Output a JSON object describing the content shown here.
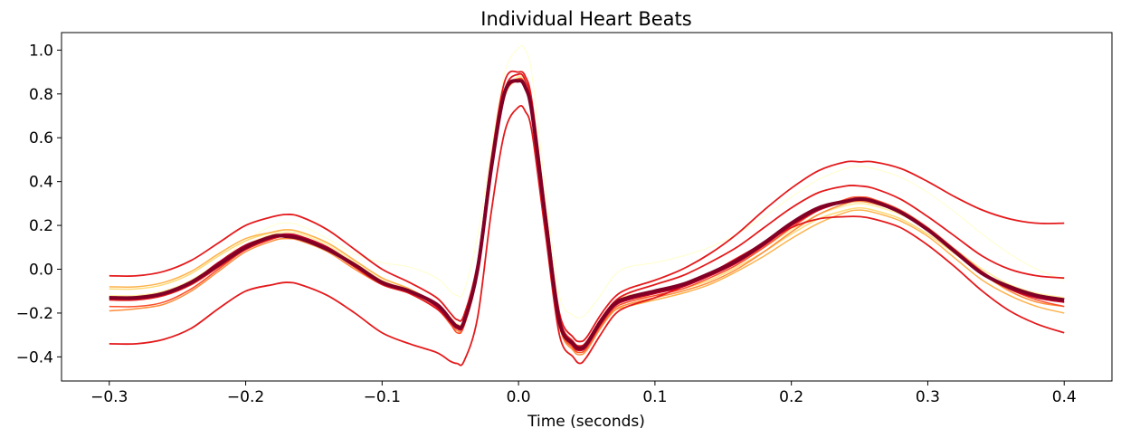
{
  "chart_data": {
    "type": "line",
    "title": "Individual Heart Beats",
    "xlabel": "Time (seconds)",
    "ylabel": "",
    "xlim": [
      -0.335,
      0.435
    ],
    "ylim": [
      -0.51,
      1.08
    ],
    "xticks": [
      -0.3,
      -0.2,
      -0.1,
      0.0,
      0.1,
      0.2,
      0.3,
      0.4
    ],
    "xtick_labels": [
      "−0.3",
      "−0.2",
      "−0.1",
      "0.0",
      "0.1",
      "0.2",
      "0.3",
      "0.4"
    ],
    "yticks": [
      -0.4,
      -0.2,
      0.0,
      0.2,
      0.4,
      0.6,
      0.8,
      1.0
    ],
    "ytick_labels": [
      "−0.4",
      "−0.2",
      "0.0",
      "0.2",
      "0.4",
      "0.6",
      "0.8",
      "1.0"
    ],
    "grid": false,
    "legend": false,
    "x": [
      -0.3,
      -0.28,
      -0.26,
      -0.24,
      -0.22,
      -0.2,
      -0.18,
      -0.17,
      -0.16,
      -0.14,
      -0.12,
      -0.1,
      -0.08,
      -0.06,
      -0.05,
      -0.045,
      -0.04,
      -0.03,
      -0.02,
      -0.01,
      0.0,
      0.005,
      0.01,
      0.02,
      0.03,
      0.04,
      0.045,
      0.05,
      0.06,
      0.07,
      0.08,
      0.1,
      0.12,
      0.14,
      0.16,
      0.18,
      0.2,
      0.22,
      0.24,
      0.25,
      0.26,
      0.28,
      0.3,
      0.32,
      0.34,
      0.36,
      0.38,
      0.4
    ],
    "series": [
      {
        "color": "#ffffcc",
        "width": 1.0,
        "values": [
          -0.13,
          -0.13,
          -0.11,
          -0.06,
          0.03,
          0.13,
          0.2,
          0.21,
          0.2,
          0.14,
          0.07,
          0.03,
          0.01,
          -0.04,
          -0.1,
          -0.12,
          -0.1,
          0.15,
          0.55,
          0.9,
          1.01,
          1.0,
          0.88,
          0.35,
          -0.12,
          -0.21,
          -0.22,
          -0.2,
          -0.12,
          -0.03,
          0.01,
          0.03,
          0.06,
          0.1,
          0.16,
          0.24,
          0.33,
          0.41,
          0.46,
          0.47,
          0.46,
          0.42,
          0.35,
          0.26,
          0.16,
          0.07,
          0.0,
          -0.05
        ]
      },
      {
        "color": "#ffeda0",
        "width": 1.5,
        "values": [
          -0.12,
          -0.12,
          -0.1,
          -0.05,
          0.03,
          0.11,
          0.16,
          0.17,
          0.16,
          0.11,
          0.03,
          -0.05,
          -0.1,
          -0.16,
          -0.22,
          -0.25,
          -0.23,
          0.0,
          0.45,
          0.79,
          0.88,
          0.84,
          0.72,
          0.23,
          -0.22,
          -0.33,
          -0.35,
          -0.33,
          -0.23,
          -0.15,
          -0.12,
          -0.1,
          -0.07,
          -0.03,
          0.03,
          0.1,
          0.18,
          0.25,
          0.29,
          0.3,
          0.29,
          0.25,
          0.18,
          0.09,
          0.0,
          -0.07,
          -0.11,
          -0.13
        ]
      },
      {
        "color": "#fed976",
        "width": 1.5,
        "values": [
          -0.09,
          -0.09,
          -0.07,
          -0.02,
          0.06,
          0.13,
          0.17,
          0.18,
          0.17,
          0.12,
          0.04,
          -0.04,
          -0.09,
          -0.16,
          -0.23,
          -0.26,
          -0.24,
          0.0,
          0.46,
          0.8,
          0.87,
          0.84,
          0.72,
          0.22,
          -0.24,
          -0.35,
          -0.37,
          -0.35,
          -0.25,
          -0.17,
          -0.14,
          -0.12,
          -0.09,
          -0.05,
          0.01,
          0.08,
          0.16,
          0.23,
          0.27,
          0.28,
          0.27,
          0.23,
          0.16,
          0.07,
          -0.02,
          -0.09,
          -0.13,
          -0.15
        ]
      },
      {
        "color": "#feb24c",
        "width": 1.5,
        "values": [
          -0.08,
          -0.08,
          -0.06,
          -0.01,
          0.07,
          0.14,
          0.17,
          0.18,
          0.17,
          0.12,
          0.04,
          -0.04,
          -0.09,
          -0.16,
          -0.23,
          -0.27,
          -0.24,
          0.0,
          0.45,
          0.8,
          0.86,
          0.83,
          0.7,
          0.2,
          -0.25,
          -0.36,
          -0.38,
          -0.36,
          -0.26,
          -0.19,
          -0.17,
          -0.14,
          -0.11,
          -0.07,
          -0.01,
          0.06,
          0.14,
          0.21,
          0.26,
          0.27,
          0.26,
          0.22,
          0.15,
          0.05,
          -0.05,
          -0.12,
          -0.17,
          -0.2
        ]
      },
      {
        "color": "#fd8d3c",
        "width": 1.5,
        "values": [
          -0.19,
          -0.18,
          -0.16,
          -0.1,
          -0.01,
          0.08,
          0.13,
          0.14,
          0.13,
          0.08,
          0.0,
          -0.07,
          -0.11,
          -0.18,
          -0.25,
          -0.28,
          -0.26,
          -0.02,
          0.44,
          0.79,
          0.86,
          0.83,
          0.7,
          0.2,
          -0.26,
          -0.37,
          -0.39,
          -0.37,
          -0.27,
          -0.19,
          -0.16,
          -0.13,
          -0.1,
          -0.06,
          0.0,
          0.08,
          0.17,
          0.25,
          0.3,
          0.31,
          0.3,
          0.26,
          0.18,
          0.08,
          -0.02,
          -0.1,
          -0.15,
          -0.17
        ]
      },
      {
        "color": "#fc4e2a",
        "width": 1.5,
        "values": [
          -0.17,
          -0.17,
          -0.15,
          -0.09,
          0.0,
          0.09,
          0.14,
          0.15,
          0.14,
          0.09,
          0.01,
          -0.06,
          -0.11,
          -0.18,
          -0.25,
          -0.29,
          -0.26,
          -0.02,
          0.45,
          0.8,
          0.87,
          0.84,
          0.71,
          0.21,
          -0.25,
          -0.36,
          -0.38,
          -0.36,
          -0.26,
          -0.18,
          -0.15,
          -0.12,
          -0.09,
          -0.04,
          0.02,
          0.1,
          0.19,
          0.27,
          0.32,
          0.33,
          0.32,
          0.27,
          0.19,
          0.09,
          -0.01,
          -0.09,
          -0.14,
          -0.17
        ]
      },
      {
        "color": "#e31a1c",
        "width": 1.8,
        "values": [
          -0.03,
          -0.03,
          -0.01,
          0.04,
          0.12,
          0.2,
          0.24,
          0.25,
          0.24,
          0.18,
          0.09,
          0.0,
          -0.06,
          -0.13,
          -0.2,
          -0.23,
          -0.21,
          0.03,
          0.5,
          0.86,
          0.9,
          0.88,
          0.76,
          0.26,
          -0.2,
          -0.31,
          -0.33,
          -0.31,
          -0.21,
          -0.13,
          -0.09,
          -0.05,
          0.0,
          0.07,
          0.16,
          0.27,
          0.37,
          0.45,
          0.49,
          0.49,
          0.49,
          0.46,
          0.4,
          0.33,
          0.27,
          0.23,
          0.21,
          0.21
        ]
      },
      {
        "color": "#e31a1c",
        "width": 1.8,
        "values": [
          -0.34,
          -0.34,
          -0.32,
          -0.27,
          -0.18,
          -0.1,
          -0.07,
          -0.06,
          -0.07,
          -0.12,
          -0.2,
          -0.29,
          -0.34,
          -0.38,
          -0.42,
          -0.43,
          -0.42,
          -0.22,
          0.26,
          0.63,
          0.74,
          0.72,
          0.62,
          0.15,
          -0.3,
          -0.4,
          -0.43,
          -0.4,
          -0.3,
          -0.21,
          -0.17,
          -0.13,
          -0.08,
          -0.02,
          0.05,
          0.12,
          0.19,
          0.23,
          0.24,
          0.24,
          0.23,
          0.19,
          0.11,
          0.01,
          -0.1,
          -0.19,
          -0.25,
          -0.29
        ]
      },
      {
        "color": "#e31a1c",
        "width": 1.8,
        "values": [
          -0.14,
          -0.14,
          -0.12,
          -0.07,
          0.01,
          0.09,
          0.14,
          0.15,
          0.14,
          0.09,
          0.01,
          -0.07,
          -0.11,
          -0.18,
          -0.24,
          -0.27,
          -0.25,
          -0.01,
          0.46,
          0.82,
          0.89,
          0.86,
          0.74,
          0.24,
          -0.22,
          -0.33,
          -0.35,
          -0.33,
          -0.23,
          -0.15,
          -0.11,
          -0.07,
          -0.03,
          0.03,
          0.1,
          0.19,
          0.28,
          0.35,
          0.38,
          0.38,
          0.37,
          0.32,
          0.24,
          0.15,
          0.06,
          0.0,
          -0.03,
          -0.04
        ]
      },
      {
        "color": "#bd0026",
        "width": 2.0,
        "values": [
          -0.13,
          -0.13,
          -0.11,
          -0.06,
          0.03,
          0.11,
          0.15,
          0.16,
          0.15,
          0.1,
          0.02,
          -0.06,
          -0.1,
          -0.17,
          -0.24,
          -0.27,
          -0.25,
          0.0,
          0.46,
          0.8,
          0.86,
          0.83,
          0.71,
          0.21,
          -0.24,
          -0.35,
          -0.37,
          -0.35,
          -0.25,
          -0.17,
          -0.14,
          -0.11,
          -0.08,
          -0.03,
          0.03,
          0.11,
          0.2,
          0.27,
          0.31,
          0.32,
          0.31,
          0.26,
          0.18,
          0.08,
          -0.02,
          -0.09,
          -0.13,
          -0.15
        ]
      },
      {
        "color": "#800026",
        "width": 4.0,
        "values": [
          -0.13,
          -0.13,
          -0.11,
          -0.06,
          0.02,
          0.1,
          0.15,
          0.15,
          0.14,
          0.09,
          0.02,
          -0.06,
          -0.1,
          -0.16,
          -0.23,
          -0.26,
          -0.24,
          0.0,
          0.46,
          0.81,
          0.86,
          0.83,
          0.71,
          0.22,
          -0.24,
          -0.34,
          -0.36,
          -0.34,
          -0.24,
          -0.16,
          -0.13,
          -0.1,
          -0.07,
          -0.02,
          0.04,
          0.12,
          0.21,
          0.28,
          0.31,
          0.32,
          0.31,
          0.26,
          0.18,
          0.08,
          -0.02,
          -0.08,
          -0.12,
          -0.14
        ]
      }
    ]
  }
}
